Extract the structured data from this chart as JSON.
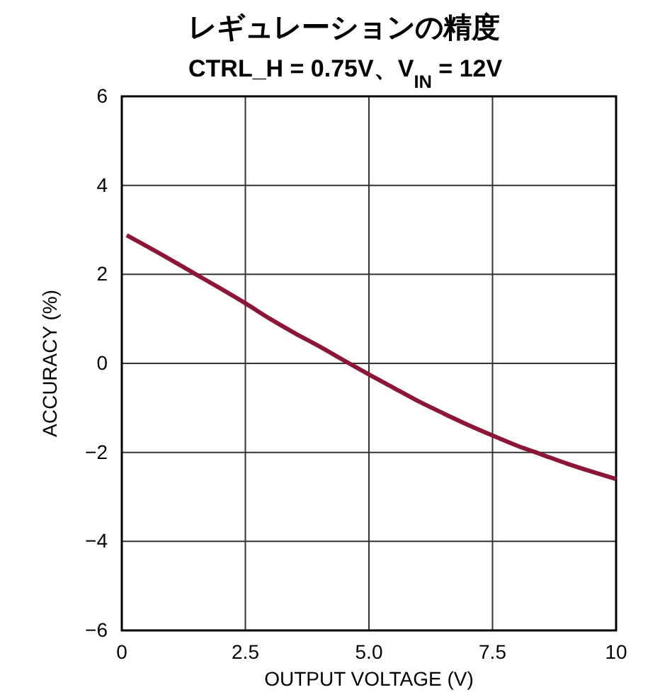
{
  "chart_data": {
    "type": "line",
    "title": "レギュレーションの精度",
    "subtitle": "CTRL_H = 0.75V、V$_{IN}$ = 12V",
    "xlabel": "OUTPUT VOLTAGE (V)",
    "ylabel": "ACCURACY (%)",
    "xlim": [
      0,
      10
    ],
    "xticks": [
      0,
      2.5,
      {
        "value": 5,
        "label": "5.0"
      },
      7.5,
      10
    ],
    "ylim": [
      -6,
      6
    ],
    "yticks": [
      {
        "value": -6,
        "label": "−6"
      },
      {
        "value": -4,
        "label": "−4"
      },
      {
        "value": -2,
        "label": "−2"
      },
      0,
      2,
      4,
      6
    ],
    "grid": true,
    "line_style": "solid",
    "series": [
      {
        "color": "#8c1538",
        "x": [
          0.1,
          0.8,
          1.5,
          2.0,
          2.5,
          3.0,
          3.5,
          4.0,
          4.6,
          5.0,
          5.5,
          6.0,
          6.5,
          7.0,
          7.5,
          8.0,
          8.5,
          9.0,
          9.5,
          10
        ],
        "values": [
          2.88,
          2.45,
          2.0,
          1.68,
          1.35,
          1.0,
          0.68,
          0.38,
          0.0,
          -0.25,
          -0.55,
          -0.85,
          -1.12,
          -1.38,
          -1.62,
          -1.85,
          -2.05,
          -2.25,
          -2.43,
          -2.6
        ]
      }
    ]
  }
}
